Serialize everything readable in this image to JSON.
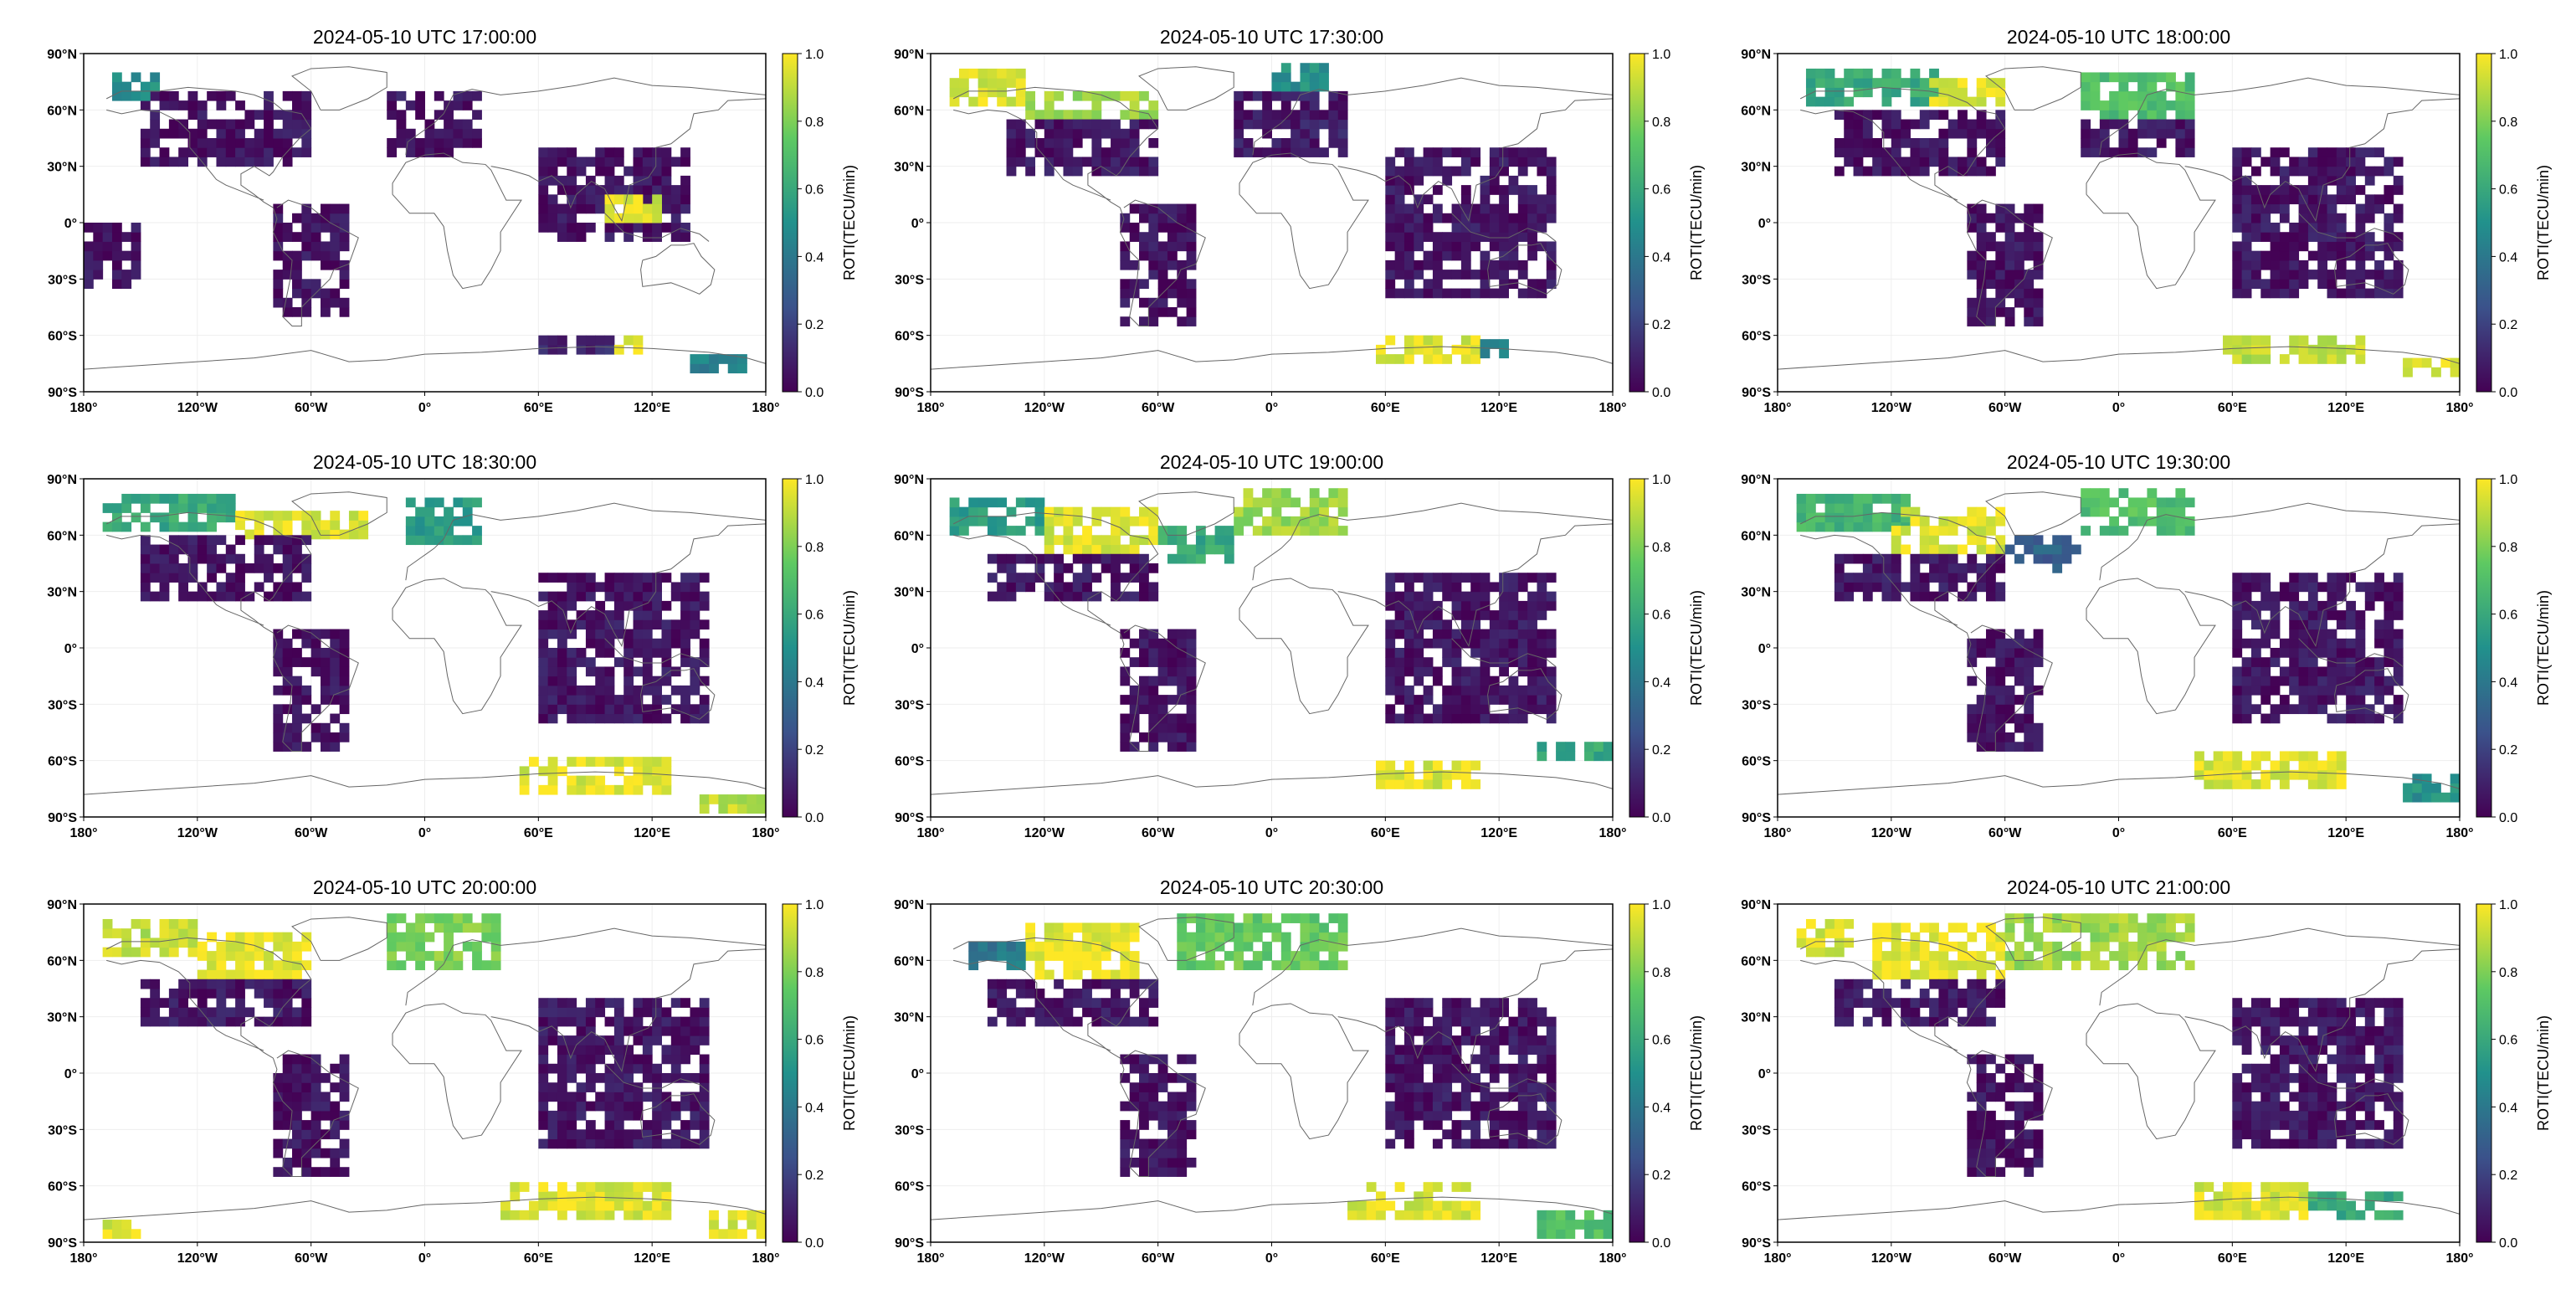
{
  "chart_data": {
    "type": "heatmap",
    "figure_description_free": true,
    "colormap": "viridis",
    "colormap_stops": [
      "#440154",
      "#3b528b",
      "#21918c",
      "#5ec962",
      "#fde725"
    ],
    "colorbar": {
      "label": "ROTI(TECU/min)",
      "range": [
        0.0,
        1.0
      ],
      "ticks": [
        "0.0",
        "0.2",
        "0.4",
        "0.6",
        "0.8",
        "1.0"
      ]
    },
    "x_ticks": [
      "180°",
      "120°W",
      "60°W",
      "0°",
      "60°E",
      "120°E",
      "180°"
    ],
    "y_ticks": [
      "90°N",
      "60°N",
      "30°N",
      "0°",
      "30°S",
      "60°S",
      "90°S"
    ],
    "xlim": [
      -180,
      180
    ],
    "ylim": [
      -90,
      90
    ],
    "panels": [
      {
        "title": "2024-05-10 UTC 17:00:00",
        "regions": [
          {
            "lon": [
              -150,
              -60
            ],
            "lat": [
              30,
              70
            ],
            "value": 0.05
          },
          {
            "lon": [
              -165,
              -140
            ],
            "lat": [
              65,
              78
            ],
            "value": 0.5
          },
          {
            "lon": [
              -20,
              30
            ],
            "lat": [
              35,
              70
            ],
            "value": 0.06
          },
          {
            "lon": [
              -80,
              -40
            ],
            "lat": [
              -50,
              10
            ],
            "value": 0.05
          },
          {
            "lon": [
              60,
              140
            ],
            "lat": [
              -10,
              40
            ],
            "value": 0.05
          },
          {
            "lon": [
              95,
              125
            ],
            "lat": [
              0,
              15
            ],
            "value": 0.95
          },
          {
            "lon": [
              -180,
              -150
            ],
            "lat": [
              -35,
              0
            ],
            "value": 0.05
          },
          {
            "lon": [
              60,
              100
            ],
            "lat": [
              -70,
              -60
            ],
            "value": 0.12
          },
          {
            "lon": [
              100,
              120
            ],
            "lat": [
              -70,
              -60
            ],
            "value": 0.95
          },
          {
            "lon": [
              140,
              180
            ],
            "lat": [
              -80,
              -70
            ],
            "value": 0.45
          }
        ]
      },
      {
        "title": "2024-05-10 UTC 17:30:00",
        "regions": [
          {
            "lon": [
              -170,
              -130
            ],
            "lat": [
              62,
              78
            ],
            "value": 0.95
          },
          {
            "lon": [
              -130,
              -60
            ],
            "lat": [
              55,
              70
            ],
            "value": 0.85
          },
          {
            "lon": [
              -140,
              -60
            ],
            "lat": [
              25,
              55
            ],
            "value": 0.06
          },
          {
            "lon": [
              -20,
              40
            ],
            "lat": [
              35,
              70
            ],
            "value": 0.08
          },
          {
            "lon": [
              0,
              30
            ],
            "lat": [
              70,
              85
            ],
            "value": 0.5
          },
          {
            "lon": [
              -80,
              -40
            ],
            "lat": [
              -55,
              10
            ],
            "value": 0.05
          },
          {
            "lon": [
              60,
              150
            ],
            "lat": [
              -40,
              40
            ],
            "value": 0.06
          },
          {
            "lon": [
              55,
              110
            ],
            "lat": [
              -75,
              -62
            ],
            "value": 0.95
          },
          {
            "lon": [
              110,
              125
            ],
            "lat": [
              -72,
              -62
            ],
            "value": 0.45
          }
        ]
      },
      {
        "title": "2024-05-10 UTC 18:00:00",
        "regions": [
          {
            "lon": [
              -165,
              -90
            ],
            "lat": [
              62,
              78
            ],
            "value": 0.6
          },
          {
            "lon": [
              -100,
              -60
            ],
            "lat": [
              62,
              75
            ],
            "value": 0.95
          },
          {
            "lon": [
              -150,
              -60
            ],
            "lat": [
              25,
              60
            ],
            "value": 0.05
          },
          {
            "lon": [
              -20,
              40
            ],
            "lat": [
              55,
              78
            ],
            "value": 0.7
          },
          {
            "lon": [
              -20,
              40
            ],
            "lat": [
              35,
              55
            ],
            "value": 0.06
          },
          {
            "lon": [
              -80,
              -40
            ],
            "lat": [
              -55,
              10
            ],
            "value": 0.05
          },
          {
            "lon": [
              60,
              150
            ],
            "lat": [
              -40,
              40
            ],
            "value": 0.06
          },
          {
            "lon": [
              55,
              130
            ],
            "lat": [
              -75,
              -62
            ],
            "value": 0.9
          },
          {
            "lon": [
              150,
              180
            ],
            "lat": [
              -82,
              -72
            ],
            "value": 0.95
          }
        ]
      },
      {
        "title": "2024-05-10 UTC 18:30:00",
        "regions": [
          {
            "lon": [
              -170,
              -100
            ],
            "lat": [
              62,
              80
            ],
            "value": 0.6
          },
          {
            "lon": [
              -100,
              -30
            ],
            "lat": [
              58,
              72
            ],
            "value": 0.95
          },
          {
            "lon": [
              -150,
              -60
            ],
            "lat": [
              25,
              58
            ],
            "value": 0.05
          },
          {
            "lon": [
              -10,
              30
            ],
            "lat": [
              55,
              80
            ],
            "value": 0.55
          },
          {
            "lon": [
              -80,
              -40
            ],
            "lat": [
              -55,
              10
            ],
            "value": 0.05
          },
          {
            "lon": [
              60,
              150
            ],
            "lat": [
              -40,
              40
            ],
            "value": 0.06
          },
          {
            "lon": [
              50,
              130
            ],
            "lat": [
              -78,
              -62
            ],
            "value": 0.95
          },
          {
            "lon": [
              140,
              180
            ],
            "lat": [
              -88,
              -78
            ],
            "value": 0.9
          }
        ]
      },
      {
        "title": "2024-05-10 UTC 19:00:00",
        "regions": [
          {
            "lon": [
              -170,
              -120
            ],
            "lat": [
              60,
              80
            ],
            "value": 0.55
          },
          {
            "lon": [
              -120,
              -60
            ],
            "lat": [
              50,
              72
            ],
            "value": 0.95
          },
          {
            "lon": [
              -60,
              -20
            ],
            "lat": [
              45,
              65
            ],
            "value": 0.6
          },
          {
            "lon": [
              -20,
              40
            ],
            "lat": [
              60,
              82
            ],
            "value": 0.85
          },
          {
            "lon": [
              -150,
              -60
            ],
            "lat": [
              25,
              50
            ],
            "value": 0.06
          },
          {
            "lon": [
              -80,
              -40
            ],
            "lat": [
              -55,
              10
            ],
            "value": 0.05
          },
          {
            "lon": [
              60,
              150
            ],
            "lat": [
              -40,
              40
            ],
            "value": 0.06
          },
          {
            "lon": [
              55,
              110
            ],
            "lat": [
              -75,
              -60
            ],
            "value": 0.95
          },
          {
            "lon": [
              140,
              180
            ],
            "lat": [
              -60,
              -50
            ],
            "value": 0.6
          }
        ]
      },
      {
        "title": "2024-05-10 UTC 19:30:00",
        "regions": [
          {
            "lon": [
              -170,
              -110
            ],
            "lat": [
              62,
              82
            ],
            "value": 0.65
          },
          {
            "lon": [
              -120,
              -60
            ],
            "lat": [
              50,
              72
            ],
            "value": 0.95
          },
          {
            "lon": [
              -60,
              -20
            ],
            "lat": [
              40,
              60
            ],
            "value": 0.3
          },
          {
            "lon": [
              -20,
              40
            ],
            "lat": [
              60,
              82
            ],
            "value": 0.7
          },
          {
            "lon": [
              -150,
              -60
            ],
            "lat": [
              25,
              50
            ],
            "value": 0.06
          },
          {
            "lon": [
              -80,
              -40
            ],
            "lat": [
              -55,
              10
            ],
            "value": 0.05
          },
          {
            "lon": [
              60,
              150
            ],
            "lat": [
              -40,
              40
            ],
            "value": 0.06
          },
          {
            "lon": [
              40,
              120
            ],
            "lat": [
              -75,
              -55
            ],
            "value": 0.95
          },
          {
            "lon": [
              150,
              180
            ],
            "lat": [
              -82,
              -70
            ],
            "value": 0.5
          }
        ]
      },
      {
        "title": "2024-05-10 UTC 20:00:00",
        "regions": [
          {
            "lon": [
              -170,
              -120
            ],
            "lat": [
              62,
              82
            ],
            "value": 0.9
          },
          {
            "lon": [
              -120,
              -60
            ],
            "lat": [
              50,
              75
            ],
            "value": 0.97
          },
          {
            "lon": [
              -20,
              40
            ],
            "lat": [
              55,
              85
            ],
            "value": 0.8
          },
          {
            "lon": [
              -150,
              -60
            ],
            "lat": [
              25,
              50
            ],
            "value": 0.06
          },
          {
            "lon": [
              -80,
              -40
            ],
            "lat": [
              -55,
              10
            ],
            "value": 0.05
          },
          {
            "lon": [
              60,
              150
            ],
            "lat": [
              -40,
              40
            ],
            "value": 0.06
          },
          {
            "lon": [
              40,
              130
            ],
            "lat": [
              -78,
              -60
            ],
            "value": 0.95
          },
          {
            "lon": [
              150,
              180
            ],
            "lat": [
              -88,
              -75
            ],
            "value": 0.95
          },
          {
            "lon": [
              -170,
              -150
            ],
            "lat": [
              -88,
              -78
            ],
            "value": 0.95
          }
        ]
      },
      {
        "title": "2024-05-10 UTC 20:30:00",
        "regions": [
          {
            "lon": [
              -130,
              -70
            ],
            "lat": [
              50,
              78
            ],
            "value": 0.97
          },
          {
            "lon": [
              -160,
              -130
            ],
            "lat": [
              55,
              70
            ],
            "value": 0.4
          },
          {
            "lon": [
              -50,
              40
            ],
            "lat": [
              55,
              82
            ],
            "value": 0.75
          },
          {
            "lon": [
              -150,
              -60
            ],
            "lat": [
              25,
              50
            ],
            "value": 0.06
          },
          {
            "lon": [
              -80,
              -40
            ],
            "lat": [
              -55,
              10
            ],
            "value": 0.05
          },
          {
            "lon": [
              60,
              150
            ],
            "lat": [
              -40,
              40
            ],
            "value": 0.06
          },
          {
            "lon": [
              40,
              110
            ],
            "lat": [
              -78,
              -60
            ],
            "value": 0.95
          },
          {
            "lon": [
              140,
              180
            ],
            "lat": [
              -88,
              -75
            ],
            "value": 0.7
          }
        ]
      },
      {
        "title": "2024-05-10 UTC 21:00:00",
        "regions": [
          {
            "lon": [
              -170,
              -140
            ],
            "lat": [
              62,
              80
            ],
            "value": 0.95
          },
          {
            "lon": [
              -130,
              -60
            ],
            "lat": [
              50,
              78
            ],
            "value": 0.97
          },
          {
            "lon": [
              -60,
              40
            ],
            "lat": [
              55,
              82
            ],
            "value": 0.85
          },
          {
            "lon": [
              -150,
              -60
            ],
            "lat": [
              25,
              50
            ],
            "value": 0.06
          },
          {
            "lon": [
              -80,
              -40
            ],
            "lat": [
              -55,
              10
            ],
            "value": 0.05
          },
          {
            "lon": [
              60,
              150
            ],
            "lat": [
              -40,
              40
            ],
            "value": 0.06
          },
          {
            "lon": [
              40,
              100
            ],
            "lat": [
              -78,
              -60
            ],
            "value": 0.95
          },
          {
            "lon": [
              100,
              150
            ],
            "lat": [
              -78,
              -65
            ],
            "value": 0.6
          }
        ]
      }
    ]
  }
}
